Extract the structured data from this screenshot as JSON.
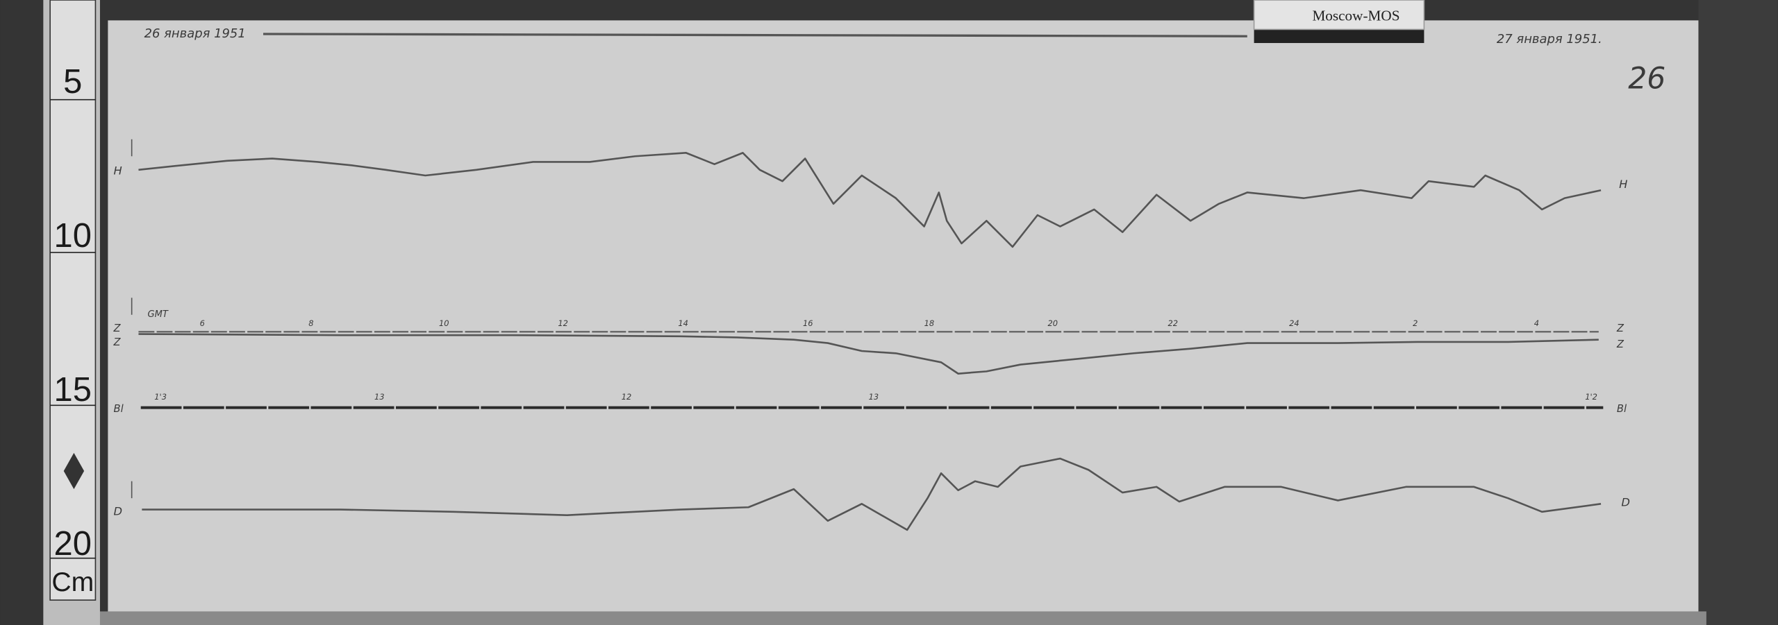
{
  "ruler": {
    "marks": [
      "5",
      "10",
      "15",
      "20"
    ],
    "unit": "Cm"
  },
  "label_card": "Moscow-MOS",
  "header": {
    "start_date": "26 января 1951",
    "end_date": "27 января 1951.",
    "sheet_number": "26"
  },
  "traces": {
    "h_label": "H",
    "z_label": "Z",
    "d_label": "D",
    "baseline_label": "Bl"
  },
  "time_axis": {
    "label": "GMT",
    "hours": [
      "6",
      "8",
      "10",
      "12",
      "14",
      "16",
      "18",
      "20",
      "22",
      "24",
      "2",
      "4"
    ]
  },
  "baseline_marks": [
    "1'3",
    "13",
    "12",
    "13",
    "1'2"
  ]
}
